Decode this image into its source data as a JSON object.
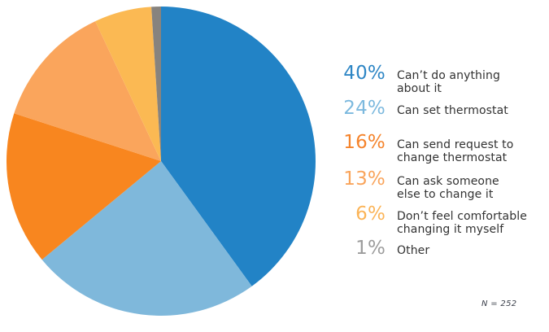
{
  "chart_data": {
    "type": "pie",
    "start_angle_deg": 0,
    "direction": "clockwise",
    "legend_position": "right",
    "annotation": "N = 252",
    "slices": [
      {
        "label": "Can’t do anything about it",
        "value": 40,
        "pct_label": "40%",
        "legend_label": "Can’t do anything\nabout it",
        "color": "#2283C6",
        "legend_color": "#2E86C5"
      },
      {
        "label": "Can set thermostat",
        "value": 24,
        "pct_label": "24%",
        "legend_label": "Can set thermostat",
        "color": "#7FB8DB",
        "legend_color": "#7CB9DE"
      },
      {
        "label": "Can send request to change thermostat",
        "value": 16,
        "pct_label": "16%",
        "legend_label": "Can send request to\nchange thermostat",
        "color": "#F8861F",
        "legend_color": "#F5842C"
      },
      {
        "label": "Can ask someone else to change it",
        "value": 13,
        "pct_label": "13%",
        "legend_label": "Can ask someone\nelse to change it",
        "color": "#FAA55C",
        "legend_color": "#F9A45B"
      },
      {
        "label": "Don’t feel comfortable changing it myself",
        "value": 6,
        "pct_label": "6%",
        "legend_label": "Don’t feel comfortable\nchanging it myself",
        "color": "#FBB953",
        "legend_color": "#FBB457"
      },
      {
        "label": "Other",
        "value": 1,
        "pct_label": "1%",
        "legend_label": "Other",
        "color": "#87837E",
        "legend_color": "#9C9C9C"
      }
    ]
  },
  "colors": {
    "label_text": "#323232",
    "note_text": "#3A3F4A",
    "background": "#FFFFFF"
  }
}
